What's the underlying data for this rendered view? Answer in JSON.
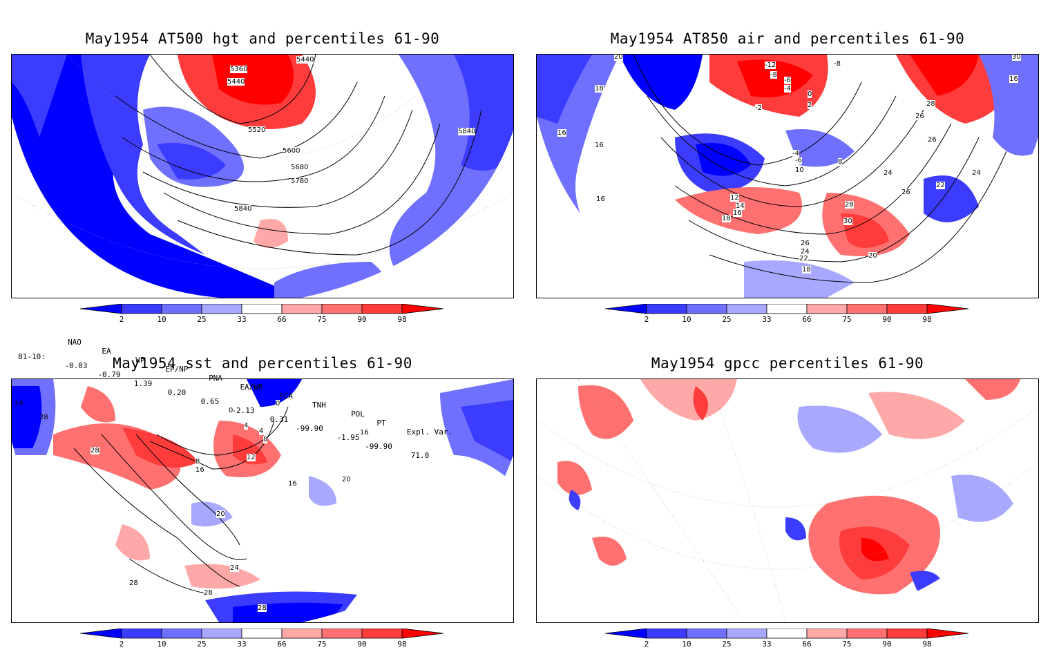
{
  "panels": {
    "tl": {
      "title": "May1954 AT500 hgt and percentiles 61-90",
      "contour_labels": [
        "5360",
        "5440",
        "5440",
        "5520",
        "5600",
        "5680",
        "5780",
        "5840",
        "5840"
      ]
    },
    "tr": {
      "title": "May1954 AT850 air and percentiles 61-90",
      "contour_labels": [
        "20",
        "-12",
        "-8",
        "-8",
        "-6",
        "-4",
        "-2",
        "2",
        "0",
        "30",
        "28",
        "26",
        "18",
        "16",
        "16",
        "26",
        "16",
        "-4",
        "-6",
        "8",
        "10",
        "24",
        "22",
        "24",
        "26",
        "12",
        "14",
        "16",
        "18",
        "28",
        "30",
        "26",
        "24",
        "22",
        "20",
        "18",
        "16"
      ]
    },
    "bl": {
      "title": "May1954 sst and percentiles 61-90",
      "contour_labels": [
        "24",
        "28",
        "28",
        "0",
        "0",
        "4",
        "4",
        "8",
        "8",
        "12",
        "16",
        "16",
        "16",
        "20",
        "20",
        "24",
        "28",
        "28",
        "28"
      ]
    },
    "br": {
      "title": "May1954 gpcc percentiles 61-90"
    }
  },
  "colorbar": {
    "ticks": [
      "2",
      "10",
      "25",
      "33",
      "66",
      "75",
      "90",
      "98"
    ],
    "colors": [
      "#0000ff",
      "#3c3cff",
      "#7070ff",
      "#a8a8ff",
      "#ffffff",
      "#ffa8a8",
      "#ff7070",
      "#ff3c3c",
      "#ff0000"
    ]
  },
  "indices": {
    "headers": [
      "NAO",
      "EA",
      "WP",
      "EP/NP",
      "PNA",
      "EA/WR",
      "SCA",
      "TNH",
      "POL",
      "PT",
      "Expl. Var."
    ],
    "row_label": "81-10:",
    "values": [
      "-0.03",
      "-0.79",
      "1.39",
      "0.20",
      "0.65",
      "-2.13",
      "0.31",
      "-99.90",
      "-1.95",
      "-99.90",
      "71.0"
    ]
  },
  "map_colors": {
    "land_outline": "#20b8b8",
    "contour": "#000000",
    "grid": "#999999"
  }
}
